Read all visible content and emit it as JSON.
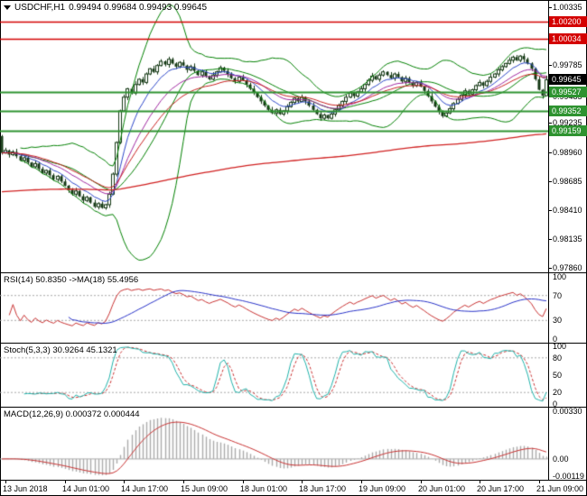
{
  "title": {
    "symbol": "USDCHF,H1",
    "ohlc": "0.99494 0.99684 0.99493 0.99645"
  },
  "colors": {
    "bg": "#FFFFFF",
    "border": "#000000",
    "candle": "#143814",
    "bull_fill": "#FFFFFF",
    "bb": "#008000",
    "ema_fast": "#2B46C8",
    "ema_mid": "#A028A0",
    "ema_med": "#C82020",
    "ema_slow": "#D02020",
    "resistance": "#D40000",
    "support": "#2E9330",
    "current": "#000000",
    "rsi": "#C83232",
    "rsi_ma": "#2832C8",
    "stoch_k": "#20B2AA",
    "stoch_d": "#C83232",
    "macd_hist": "#ABABAB",
    "macd_signal": "#C83232",
    "guide": "#A9A9A9"
  },
  "chart_data": {
    "type": "candlestick",
    "symbol": "USDCHF",
    "timeframe": "H1",
    "current_bar": {
      "open": 0.99494,
      "high": 0.99684,
      "low": 0.99493,
      "close": 0.99645
    },
    "price_axis": {
      "max": 1.00402,
      "min": 0.97818,
      "ticks": [
        {
          "value": 1.00335,
          "label": "1.00335"
        },
        {
          "value": 0.99785,
          "label": "0.99785"
        },
        {
          "value": 0.99485,
          "label": "0.99485"
        },
        {
          "value": 0.99235,
          "label": "0.99235"
        },
        {
          "value": 0.9896,
          "label": "0.98960"
        },
        {
          "value": 0.98685,
          "label": "0.98685"
        },
        {
          "value": 0.9841,
          "label": "0.98410"
        },
        {
          "value": 0.98135,
          "label": "0.98135"
        },
        {
          "value": 0.9786,
          "label": "0.97860"
        }
      ]
    },
    "levels": [
      {
        "value": 1.002,
        "label": "1.00200",
        "color": "#D40000",
        "kind": "resistance"
      },
      {
        "value": 1.00034,
        "label": "1.00034",
        "color": "#D40000",
        "kind": "resistance"
      },
      {
        "value": 0.99645,
        "label": "0.99645",
        "color": "#000000",
        "kind": "current"
      },
      {
        "value": 0.99527,
        "label": "0.99527",
        "color": "#2E9330",
        "kind": "support"
      },
      {
        "value": 0.99352,
        "label": "0.99352",
        "color": "#2E9330",
        "kind": "support"
      },
      {
        "value": 0.99159,
        "label": "0.99159",
        "color": "#2E9330",
        "kind": "support"
      }
    ],
    "time_labels": [
      {
        "idx": 1,
        "label": "13 Jun 2018"
      },
      {
        "idx": 17,
        "label": "14 Jun 01:00"
      },
      {
        "idx": 33,
        "label": "14 Jun 17:00"
      },
      {
        "idx": 49,
        "label": "15 Jun 09:00"
      },
      {
        "idx": 65,
        "label": "18 Jun 01:00"
      },
      {
        "idx": 81,
        "label": "18 Jun 17:00"
      },
      {
        "idx": 97,
        "label": "19 Jun 09:00"
      },
      {
        "idx": 113,
        "label": "20 Jun 01:00"
      },
      {
        "idx": 129,
        "label": "20 Jun 17:00"
      },
      {
        "idx": 145,
        "label": "21 Jun 09:00"
      }
    ],
    "first_open": 0.9911,
    "last_candle": {
      "o": 0.99494,
      "h": 0.99684,
      "l": 0.99493,
      "c": 0.99645
    },
    "closes": [
      0.9895,
      0.98975,
      0.98935,
      0.9896,
      0.9892,
      0.9888,
      0.98905,
      0.9886,
      0.9882,
      0.9885,
      0.988,
      0.9876,
      0.98785,
      0.9874,
      0.987,
      0.9873,
      0.9868,
      0.9864,
      0.986,
      0.9856,
      0.9859,
      0.9854,
      0.985,
      0.9853,
      0.9848,
      0.9844,
      0.9847,
      0.9843,
      0.9846,
      0.9856,
      0.9875,
      0.9905,
      0.9935,
      0.9948,
      0.9956,
      0.9952,
      0.996,
      0.9965,
      0.9962,
      0.997,
      0.9975,
      0.9972,
      0.9978,
      0.9982,
      0.9979,
      0.9984,
      0.998,
      0.9977,
      0.9981,
      0.9978,
      0.9974,
      0.9977,
      0.9973,
      0.9969,
      0.9972,
      0.9968,
      0.9965,
      0.9969,
      0.9972,
      0.9976,
      0.9973,
      0.997,
      0.9966,
      0.9963,
      0.9967,
      0.9964,
      0.996,
      0.9956,
      0.9952,
      0.9948,
      0.9944,
      0.994,
      0.9936,
      0.9933,
      0.9936,
      0.9932,
      0.9935,
      0.9939,
      0.9943,
      0.9947,
      0.9944,
      0.9948,
      0.9944,
      0.994,
      0.9936,
      0.9932,
      0.9928,
      0.9931,
      0.9928,
      0.9932,
      0.9936,
      0.994,
      0.9944,
      0.9948,
      0.9952,
      0.9949,
      0.9953,
      0.9956,
      0.996,
      0.9964,
      0.9968,
      0.9965,
      0.9969,
      0.9972,
      0.9969,
      0.9966,
      0.997,
      0.9967,
      0.9963,
      0.9966,
      0.9962,
      0.9959,
      0.9962,
      0.9958,
      0.9954,
      0.9949,
      0.9944,
      0.9939,
      0.9934,
      0.993,
      0.9933,
      0.9937,
      0.9942,
      0.9946,
      0.995,
      0.9954,
      0.9951,
      0.9955,
      0.9959,
      0.9962,
      0.9959,
      0.9963,
      0.9967,
      0.997,
      0.9974,
      0.9977,
      0.998,
      0.9983,
      0.9986,
      0.9983,
      0.9987,
      0.9984,
      0.998,
      0.9975,
      0.9965,
      0.9955,
      0.99494,
      0.99645
    ],
    "wick_pattern": [
      12,
      25,
      8,
      18,
      30,
      10,
      22,
      15,
      6,
      28,
      14,
      20,
      9,
      24,
      16,
      11
    ],
    "overlays": {
      "bollinger": {
        "period": 20,
        "deviation": 2
      },
      "ema_fast_period": 8,
      "ema_mid_period": 16,
      "ema_med_period": 24,
      "ema_slow_period": 300,
      "ema_slow_seed": 0.9858
    },
    "rsi": {
      "label": "RSI(14) 50.8350 ->MA(18) 55.4956",
      "period": 14,
      "ma_period": 18,
      "value": 50.835,
      "ma_value": 55.4956,
      "scale_labels": [
        "100",
        "70",
        "30",
        "0"
      ],
      "scale_values": [
        100,
        70,
        30,
        0
      ],
      "guides": [
        70,
        30
      ]
    },
    "stoch": {
      "label": "Stoch(5,3,3) 30.9264 45.1321",
      "k_value": 30.9264,
      "d_value": 45.1321,
      "scale_labels": [
        "100",
        "80",
        "50",
        "20",
        "0"
      ],
      "scale_values": [
        100,
        80,
        50,
        20,
        0
      ],
      "guides": [
        80,
        20
      ]
    },
    "macd": {
      "label": "MACD(12,26,9) 0.000372 0.000444",
      "macd_value": 0.000372,
      "signal_value": 0.000444,
      "scale_labels": [
        "0.00330",
        "0.00",
        "-0.00119"
      ],
      "scale_values": [
        0.0033,
        0,
        -0.00119
      ]
    }
  }
}
